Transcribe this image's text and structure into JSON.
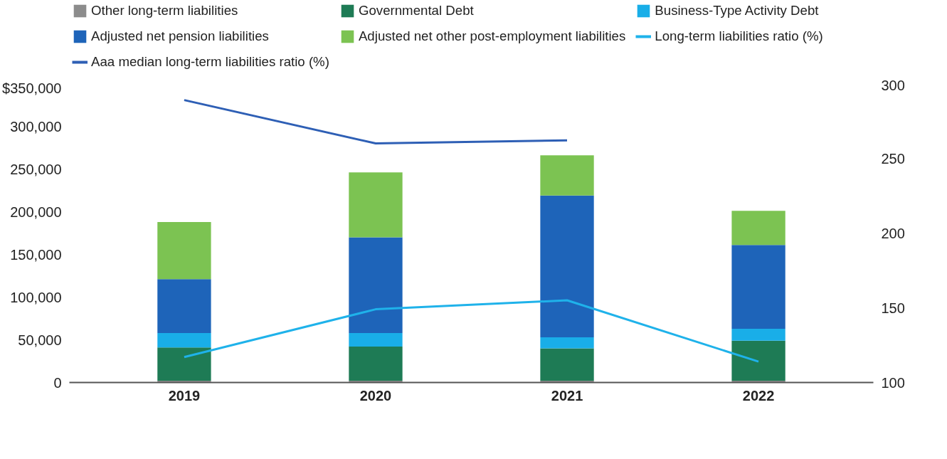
{
  "chart_data": {
    "type": "bar",
    "stacked": true,
    "categories": [
      "2019",
      "2020",
      "2021",
      "2022"
    ],
    "series": [
      {
        "name": "Other long-term liabilities",
        "color": "#8c8c8c",
        "values": [
          2000,
          2000,
          2000,
          2000
        ]
      },
      {
        "name": "Governmental Debt",
        "color": "#1e7b55",
        "values": [
          39000,
          40000,
          38000,
          47000
        ]
      },
      {
        "name": "Business-Type Activity Debt",
        "color": "#19aee8",
        "values": [
          17000,
          16000,
          13000,
          14000
        ]
      },
      {
        "name": "Adjusted net pension liabilities",
        "color": "#1e64b9",
        "values": [
          63000,
          112000,
          166000,
          98000
        ]
      },
      {
        "name": "Adjusted net other post-employment liabilities",
        "color": "#7cc352",
        "values": [
          67000,
          76000,
          47000,
          40000
        ]
      },
      {
        "name": "Long-term liabilities ratio (%)",
        "type": "line",
        "axis": "y2",
        "color": "#1fb2ea",
        "values": [
          117,
          149,
          155,
          114
        ]
      },
      {
        "name": "Aaa median long-term liabilities ratio (%)",
        "type": "line",
        "axis": "y2",
        "color": "#2e5fb5",
        "values": [
          289,
          260,
          262,
          null
        ]
      }
    ],
    "ylim": [
      0,
      350000
    ],
    "yticks": [
      0,
      {
        "value": 50000,
        "label": "50,000"
      },
      {
        "value": 100000,
        "label": "100,000"
      },
      {
        "value": 150000,
        "label": "150,000"
      },
      {
        "value": 200000,
        "label": "200,000"
      },
      {
        "value": 250000,
        "label": "250,000"
      },
      {
        "value": 300000,
        "label": "300,000"
      },
      {
        "value": 350000,
        "label": "$350,000"
      }
    ],
    "y2lim": [
      100,
      300
    ],
    "y2ticks": [
      100,
      150,
      200,
      250,
      300
    ],
    "grid": false,
    "legend": "top"
  }
}
